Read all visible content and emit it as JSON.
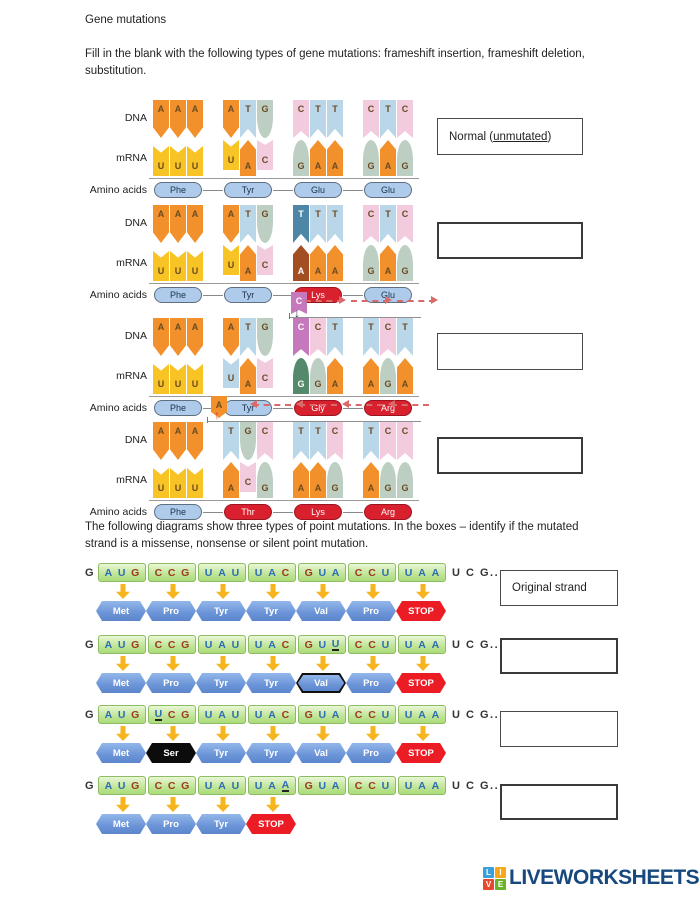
{
  "title": "Gene mutations",
  "intro": {
    "line1": "Fill in the blank with the following types of gene mutations: frameshift insertion, frameshift deletion,",
    "line2": "substitution."
  },
  "palette": {
    "orange": "#F2912B",
    "yellow": "#F7C325",
    "lightblue": "#BAD7EA",
    "sage": "#BDCFC3",
    "pink": "#F3CBDF",
    "steel": "#4E86A8",
    "brown": "#A24E22",
    "orchid": "#C678BD",
    "dkgreen": "#55896B",
    "lblue": "#BAD7EA",
    "amino_blue": "#AECBEB",
    "amino_red": "#D8202E",
    "hex_blue": "#6B94D8",
    "hex_red": "#EC1C24",
    "hex_black": "#0C0C0C",
    "codon_green": "#C3E69B",
    "arrow_yellow": "#F6B41F",
    "shift_arrow_red": "#D96A6A"
  },
  "section1": {
    "row_labels": {
      "dna": "DNA",
      "mrna": "mRNA",
      "amino": "Amino acids"
    },
    "diagrams": [
      {
        "name": "normal",
        "dna": [
          [
            "A",
            "A",
            "A"
          ],
          [
            "A",
            "T",
            "G"
          ],
          [
            "C",
            "T",
            "T"
          ],
          [
            "C",
            "T",
            "C"
          ]
        ],
        "mrna": [
          [
            "U",
            "U",
            "U"
          ],
          [
            "U",
            "A",
            "C"
          ],
          [
            "G",
            "A",
            "A"
          ],
          [
            "G",
            "A",
            "G"
          ]
        ],
        "amino": [
          {
            "label": "Phe",
            "variant": "blue"
          },
          {
            "label": "Tyr",
            "variant": "blue"
          },
          {
            "label": "Glu",
            "variant": "blue"
          },
          {
            "label": "Glu",
            "variant": "blue"
          }
        ],
        "answer": {
          "pre": "Normal (",
          "underlined": "unmutated",
          "post": ")"
        }
      },
      {
        "name": "substitution",
        "dna": [
          [
            "A",
            "A",
            "A"
          ],
          [
            "A",
            "T",
            "G"
          ],
          [
            "T:steel",
            "T",
            "T"
          ],
          [
            "C",
            "T",
            "C"
          ]
        ],
        "mrna": [
          [
            "U",
            "U",
            "U"
          ],
          [
            "U",
            "A",
            "C"
          ],
          [
            "A:brown",
            "A",
            "A"
          ],
          [
            "G",
            "A",
            "G"
          ]
        ],
        "amino": [
          {
            "label": "Phe",
            "variant": "blue"
          },
          {
            "label": "Tyr",
            "variant": "blue"
          },
          {
            "label": "Lys",
            "variant": "red"
          },
          {
            "label": "Glu",
            "variant": "blue"
          }
        ],
        "answer": null
      },
      {
        "name": "frameshift-insertion",
        "annotation": {
          "type": "insertion",
          "base": "C",
          "color": "orchid",
          "shift": "right"
        },
        "dna": [
          [
            "A",
            "A",
            "A"
          ],
          [
            "A",
            "T",
            "G"
          ],
          [
            "C:orchid",
            "C",
            "T"
          ],
          [
            "T",
            "C",
            "T"
          ]
        ],
        "mrna": [
          [
            "U",
            "U",
            "U"
          ],
          [
            "U:lblue",
            "A",
            "C"
          ],
          [
            "G:dkgreen",
            "G",
            "A"
          ],
          [
            "A",
            "G",
            "A"
          ]
        ],
        "amino": [
          {
            "label": "Phe",
            "variant": "blue"
          },
          {
            "label": "Tyr",
            "variant": "blue"
          },
          {
            "label": "Gly",
            "variant": "red"
          },
          {
            "label": "Arg",
            "variant": "red"
          }
        ],
        "answer": null
      },
      {
        "name": "frameshift-deletion",
        "annotation": {
          "type": "deletion",
          "base": "A",
          "color": "orange",
          "shift": "left"
        },
        "dna": [
          [
            "A",
            "A",
            "A"
          ],
          [
            "T",
            "G",
            "C"
          ],
          [
            "T",
            "T",
            "C"
          ],
          [
            "T",
            "C",
            "C"
          ]
        ],
        "mrna": [
          [
            "U",
            "U",
            "U"
          ],
          [
            "A",
            "C",
            "G"
          ],
          [
            "A",
            "A",
            "G"
          ],
          [
            "A",
            "G",
            "G"
          ]
        ],
        "amino": [
          {
            "label": "Phe",
            "variant": "blue"
          },
          {
            "label": "Thr",
            "variant": "red"
          },
          {
            "label": "Lys",
            "variant": "red"
          },
          {
            "label": "Arg",
            "variant": "red"
          }
        ],
        "answer": null
      }
    ]
  },
  "section2": {
    "intro_line1": "The following diagrams show three types of point mutations.  In the boxes – identify if the mutated",
    "intro_line2": "strand is a missense, nonsense or silent point mutation.",
    "strands": [
      {
        "lead": "G",
        "codons": [
          {
            "t": "AUG"
          },
          {
            "t": "CCG"
          },
          {
            "t": "UAU"
          },
          {
            "t": "UAC"
          },
          {
            "t": "GUA"
          },
          {
            "t": "CCU"
          },
          {
            "t": "UAA"
          }
        ],
        "tail": "U C G..",
        "amino": [
          {
            "label": "Met",
            "variant": "blue"
          },
          {
            "label": "Pro",
            "variant": "blue"
          },
          {
            "label": "Tyr",
            "variant": "blue"
          },
          {
            "label": "Tyr",
            "variant": "blue"
          },
          {
            "label": "Val",
            "variant": "blue"
          },
          {
            "label": "Pro",
            "variant": "blue"
          },
          {
            "label": "STOP",
            "variant": "red"
          }
        ],
        "answer": "Original strand"
      },
      {
        "lead": "G",
        "codons": [
          {
            "t": "AUG"
          },
          {
            "t": "CCG"
          },
          {
            "t": "UAU"
          },
          {
            "t": "UAC"
          },
          {
            "t": "GUU",
            "u": 2
          },
          {
            "t": "CCU"
          },
          {
            "t": "UAA"
          }
        ],
        "tail": "U C G..",
        "amino": [
          {
            "label": "Met",
            "variant": "blue"
          },
          {
            "label": "Pro",
            "variant": "blue"
          },
          {
            "label": "Tyr",
            "variant": "blue"
          },
          {
            "label": "Tyr",
            "variant": "blue"
          },
          {
            "label": "Val",
            "variant": "outline"
          },
          {
            "label": "Pro",
            "variant": "blue"
          },
          {
            "label": "STOP",
            "variant": "red"
          }
        ],
        "answer": ""
      },
      {
        "lead": "G",
        "codons": [
          {
            "t": "AUG"
          },
          {
            "t": "UCG",
            "u": 0
          },
          {
            "t": "UAU"
          },
          {
            "t": "UAC"
          },
          {
            "t": "GUA"
          },
          {
            "t": "CCU"
          },
          {
            "t": "UAA"
          }
        ],
        "tail": "U C G..",
        "amino": [
          {
            "label": "Met",
            "variant": "blue"
          },
          {
            "label": "Ser",
            "variant": "black"
          },
          {
            "label": "Tyr",
            "variant": "blue"
          },
          {
            "label": "Tyr",
            "variant": "blue"
          },
          {
            "label": "Val",
            "variant": "blue"
          },
          {
            "label": "Pro",
            "variant": "blue"
          },
          {
            "label": "STOP",
            "variant": "red"
          }
        ],
        "answer": ""
      },
      {
        "lead": "G",
        "codons": [
          {
            "t": "AUG"
          },
          {
            "t": "CCG"
          },
          {
            "t": "UAU"
          },
          {
            "t": "UAA",
            "u": 2
          },
          {
            "t": "GUA"
          },
          {
            "t": "CCU"
          },
          {
            "t": "UAA"
          }
        ],
        "tail": "U C G..",
        "amino": [
          {
            "label": "Met",
            "variant": "blue"
          },
          {
            "label": "Pro",
            "variant": "blue"
          },
          {
            "label": "Tyr",
            "variant": "blue"
          },
          {
            "label": "STOP",
            "variant": "red"
          }
        ],
        "answer": ""
      }
    ]
  },
  "footer": {
    "logo_squares": [
      {
        "letter": "L",
        "color": "#3AA0D8"
      },
      {
        "letter": "I",
        "color": "#F5A81C"
      },
      {
        "letter": "V",
        "color": "#E8482C"
      },
      {
        "letter": "E",
        "color": "#69B32A"
      }
    ],
    "logo_text": "LIVEWORKSHEETS"
  }
}
